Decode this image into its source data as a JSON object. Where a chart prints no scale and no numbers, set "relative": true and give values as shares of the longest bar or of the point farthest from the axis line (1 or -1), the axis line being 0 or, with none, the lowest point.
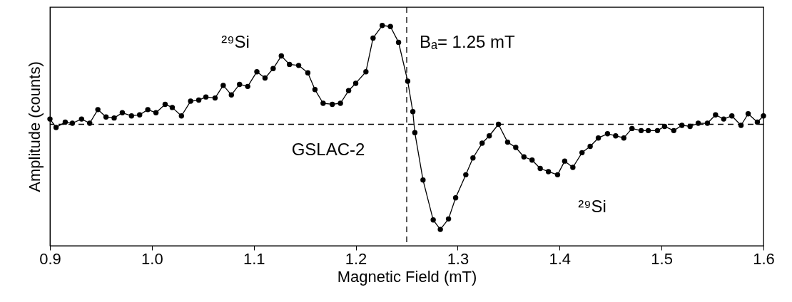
{
  "chart_data": {
    "type": "line",
    "relative": true,
    "xlabel": "Magnetic Field (mT)",
    "ylabel": "Amplitude (counts)",
    "xlim": [
      0.9,
      1.6
    ],
    "xticks": [
      0.9,
      {
        "value": 1,
        "label": "1.0"
      },
      1.1,
      1.2,
      1.3,
      1.4,
      1.5,
      1.6
    ],
    "marker": "circle",
    "line_style": "solid",
    "series": [
      {
        "color": "#000000",
        "x": [
          0.9,
          0.906,
          0.915,
          0.922,
          0.931,
          0.939,
          0.947,
          0.955,
          0.963,
          0.971,
          0.98,
          0.988,
          0.996,
          1.004,
          1.013,
          1.02,
          1.029,
          1.038,
          1.046,
          1.053,
          1.062,
          1.07,
          1.078,
          1.086,
          1.094,
          1.103,
          1.111,
          1.119,
          1.127,
          1.135,
          1.144,
          1.153,
          1.16,
          1.168,
          1.177,
          1.185,
          1.193,
          1.2,
          1.21,
          1.217,
          1.226,
          1.234,
          1.242,
          1.251,
          1.256,
          1.258,
          1.266,
          1.276,
          1.283,
          1.291,
          1.298,
          1.308,
          1.315,
          1.324,
          1.331,
          1.34,
          1.349,
          1.357,
          1.365,
          1.373,
          1.381,
          1.389,
          1.398,
          1.405,
          1.413,
          1.422,
          1.43,
          1.438,
          1.447,
          1.455,
          1.463,
          1.471,
          1.48,
          1.487,
          1.496,
          1.503,
          1.512,
          1.52,
          1.528,
          1.536,
          1.545,
          1.553,
          1.561,
          1.569,
          1.578,
          1.585,
          1.594,
          1.6
        ],
        "values": [
          0.05,
          -0.03,
          0.02,
          0.01,
          0.05,
          0.01,
          0.14,
          0.07,
          0.06,
          0.11,
          0.08,
          0.09,
          0.14,
          0.11,
          0.19,
          0.16,
          0.08,
          0.22,
          0.23,
          0.26,
          0.25,
          0.37,
          0.28,
          0.38,
          0.36,
          0.5,
          0.44,
          0.53,
          0.65,
          0.57,
          0.56,
          0.49,
          0.33,
          0.2,
          0.19,
          0.2,
          0.32,
          0.39,
          0.5,
          0.82,
          0.94,
          0.93,
          0.78,
          0.41,
          0.12,
          -0.08,
          -0.53,
          -0.91,
          -1.0,
          -0.9,
          -0.7,
          -0.48,
          -0.32,
          -0.18,
          -0.11,
          0.0,
          -0.17,
          -0.22,
          -0.31,
          -0.34,
          -0.42,
          -0.45,
          -0.48,
          -0.35,
          -0.41,
          -0.27,
          -0.21,
          -0.13,
          -0.09,
          -0.11,
          -0.13,
          -0.04,
          -0.06,
          -0.06,
          -0.06,
          -0.02,
          -0.06,
          -0.01,
          -0.02,
          0.01,
          0.01,
          0.09,
          0.05,
          0.08,
          -0.01,
          0.1,
          0.02,
          0.08
        ]
      }
    ],
    "ref_lines": [
      {
        "axis": "x",
        "value": 1.25,
        "label": "Bₐ= 1.25 mT",
        "color": "#000000",
        "line_style": "dashed"
      },
      {
        "axis": "y",
        "value": 0,
        "color": "#000000",
        "line_style": "dashed"
      }
    ],
    "annotations": [
      "²⁹Si",
      "²⁹Si",
      "GSLAC-2"
    ]
  }
}
